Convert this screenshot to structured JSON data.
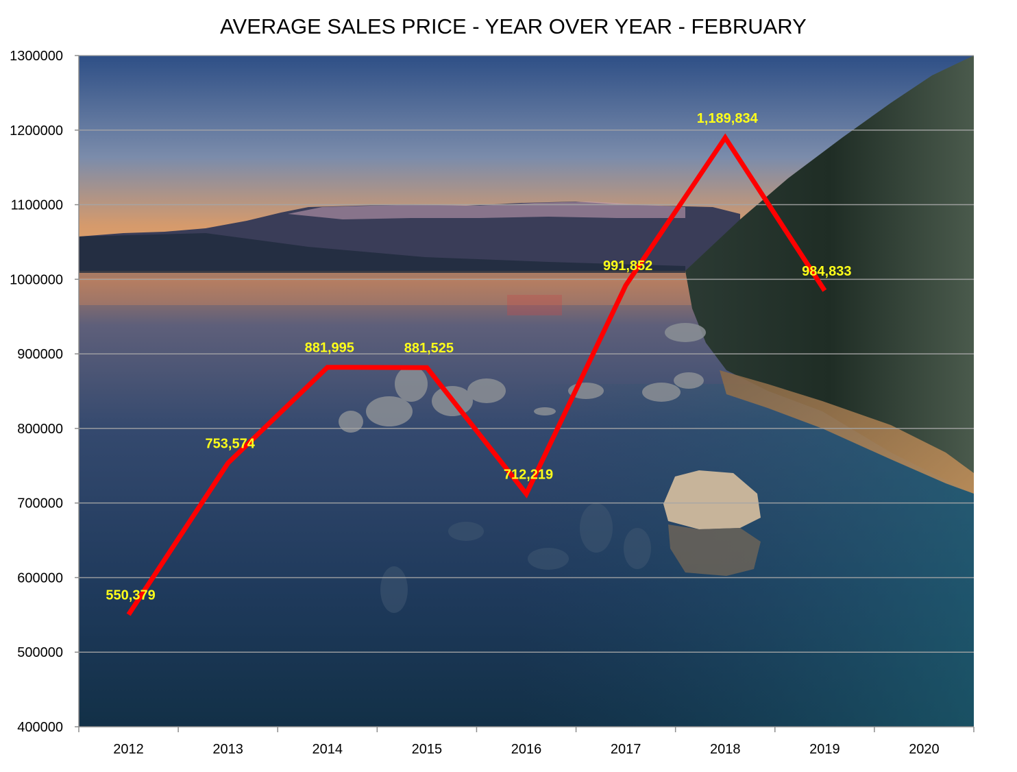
{
  "colors": {
    "line": "#ff0000",
    "data_label": "#ffff1a",
    "gridline": "#a6a6a6",
    "axis": "#8c8c8c"
  },
  "chart_data": {
    "type": "line",
    "title": "AVERAGE SALES PRICE - YEAR OVER YEAR - FEBRUARY",
    "xlabel": "",
    "ylabel": "",
    "categories": [
      "2012",
      "2013",
      "2014",
      "2015",
      "2016",
      "2017",
      "2018",
      "2019",
      "2020"
    ],
    "series": [
      {
        "values": [
          550379,
          753574,
          881995,
          881525,
          712219,
          991852,
          1189834,
          984833,
          null
        ],
        "data_labels": [
          "550,379",
          "753,574",
          "881,995",
          "881,525",
          "712,219",
          "991,852",
          "1,189,834",
          "984,833",
          ""
        ]
      }
    ],
    "ylim": [
      400000,
      1300000
    ],
    "yticks": [
      "400000",
      "500000",
      "600000",
      "700000",
      "800000",
      "900000",
      "1000000",
      "1100000",
      "1200000",
      "1300000"
    ],
    "grid": true,
    "legend": "none",
    "background": "lake-sunset-photo"
  }
}
